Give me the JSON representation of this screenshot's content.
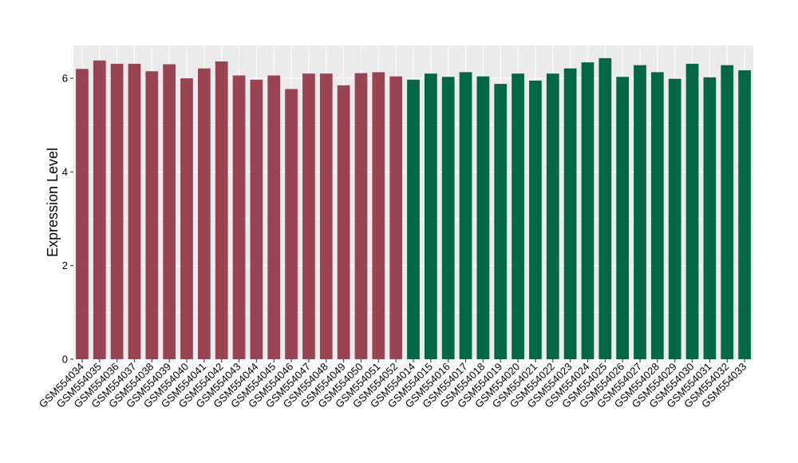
{
  "chart_data": {
    "type": "bar",
    "title": "",
    "xlabel": "",
    "ylabel": "Expression Level",
    "ylim": [
      0,
      6.7
    ],
    "yticks": [
      0,
      2,
      4,
      6
    ],
    "grid": true,
    "legend": "none",
    "colors": {
      "group_1": "#9b4451",
      "group_2": "#006845",
      "panel": "#ebebeb",
      "gridline": "#ffffff",
      "tick": "#333333"
    },
    "categories": [
      "GSM554034",
      "GSM554035",
      "GSM554036",
      "GSM554037",
      "GSM554038",
      "GSM554039",
      "GSM554040",
      "GSM554041",
      "GSM554042",
      "GSM554043",
      "GSM554044",
      "GSM554045",
      "GSM554046",
      "GSM554047",
      "GSM554048",
      "GSM554049",
      "GSM554050",
      "GSM554051",
      "GSM554052",
      "GSM554014",
      "GSM554015",
      "GSM554016",
      "GSM554017",
      "GSM554018",
      "GSM554019",
      "GSM554020",
      "GSM554021",
      "GSM554022",
      "GSM554023",
      "GSM554024",
      "GSM554025",
      "GSM554026",
      "GSM554027",
      "GSM554028",
      "GSM554029",
      "GSM554030",
      "GSM554031",
      "GSM554032",
      "GSM554033"
    ],
    "values": [
      6.2,
      6.38,
      6.31,
      6.31,
      6.15,
      6.3,
      6.0,
      6.21,
      6.36,
      6.06,
      5.97,
      6.06,
      5.77,
      6.1,
      6.1,
      5.85,
      6.11,
      6.13,
      6.04,
      5.97,
      6.1,
      6.03,
      6.13,
      6.04,
      5.88,
      6.1,
      5.95,
      6.1,
      6.21,
      6.34,
      6.43,
      6.03,
      6.28,
      6.13,
      5.99,
      6.31,
      6.02,
      6.28,
      6.17
    ],
    "groups": [
      0,
      0,
      0,
      0,
      0,
      0,
      0,
      0,
      0,
      0,
      0,
      0,
      0,
      0,
      0,
      0,
      0,
      0,
      0,
      1,
      1,
      1,
      1,
      1,
      1,
      1,
      1,
      1,
      1,
      1,
      1,
      1,
      1,
      1,
      1,
      1,
      1,
      1,
      1
    ]
  }
}
